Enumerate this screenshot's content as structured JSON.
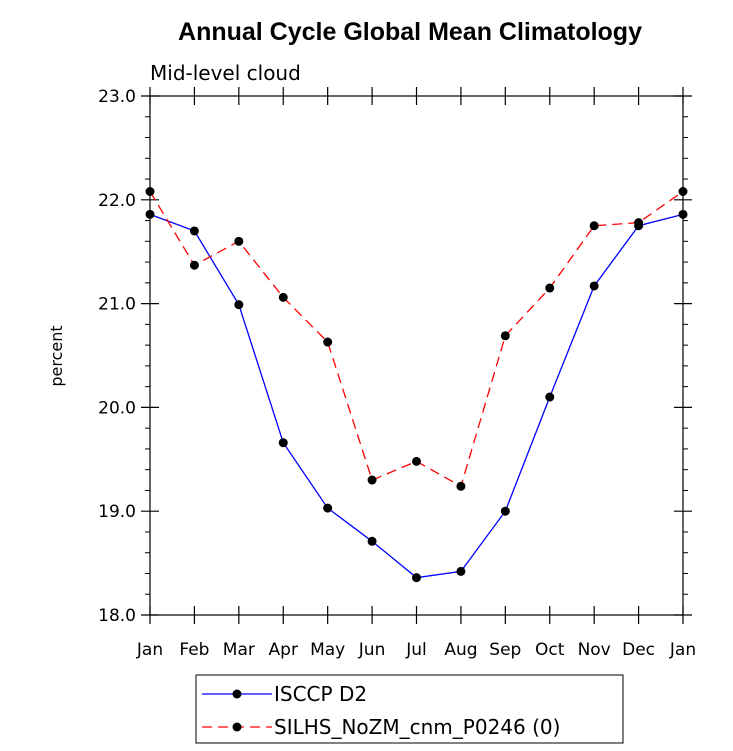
{
  "chart_data": {
    "type": "line",
    "title": "Annual Cycle Global Mean Climatology",
    "subtitle": "Mid-level cloud",
    "ylabel": "percent",
    "xlabel": "",
    "categories": [
      "Jan",
      "Feb",
      "Mar",
      "Apr",
      "May",
      "Jun",
      "Jul",
      "Aug",
      "Sep",
      "Oct",
      "Nov",
      "Dec",
      "Jan"
    ],
    "ylim": [
      18.0,
      23.0
    ],
    "yticks": [
      "18.0",
      "19.0",
      "20.0",
      "21.0",
      "22.0",
      "23.0"
    ],
    "series": [
      {
        "name": "ISCCP D2",
        "color": "#0000ff",
        "dash": "solid",
        "values": [
          21.86,
          21.7,
          20.99,
          19.66,
          19.03,
          18.71,
          18.36,
          18.42,
          19.0,
          20.1,
          21.17,
          21.75,
          21.86
        ]
      },
      {
        "name": "SILHS_NoZM_cnm_P0246 (0)",
        "color": "#ff0000",
        "dash": "dashed",
        "values": [
          22.08,
          21.37,
          21.6,
          21.06,
          20.63,
          19.3,
          19.48,
          19.24,
          20.69,
          21.15,
          21.75,
          21.78,
          22.08
        ]
      }
    ],
    "marker_color": "#000000",
    "legend_position": "bottom"
  }
}
